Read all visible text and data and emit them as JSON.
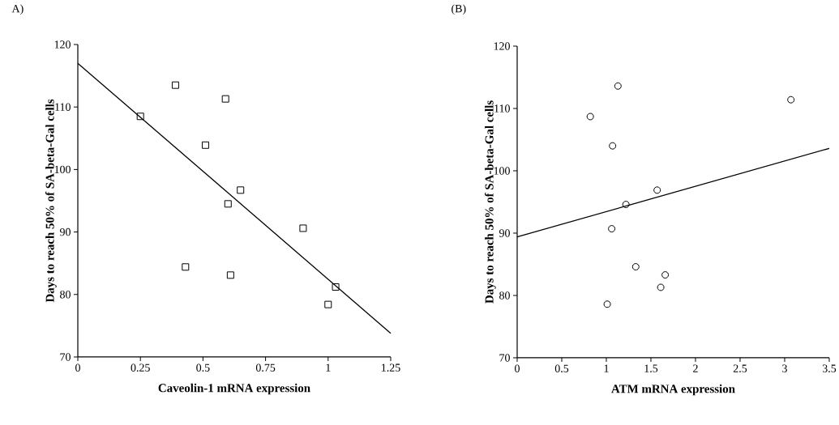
{
  "chart_data": [
    {
      "type": "scatter",
      "title": "A)",
      "xlabel": "Caveolin-1 mRNA expression",
      "ylabel": "Days to reach 50% of SA-beta-Gal cells",
      "xlim": [
        0,
        1.25
      ],
      "ylim": [
        70,
        120
      ],
      "xticks": [
        0,
        0.25,
        0.5,
        0.75,
        1,
        1.25
      ],
      "yticks": [
        70,
        80,
        90,
        100,
        110,
        120
      ],
      "series": [
        {
          "marker": "square",
          "color": "#000000",
          "x": [
            0.25,
            0.39,
            0.59,
            0.51,
            0.65,
            0.6,
            0.9,
            0.43,
            0.61,
            1.03,
            1.0
          ],
          "values": [
            108.5,
            113.5,
            111.3,
            103.9,
            96.7,
            94.5,
            90.6,
            84.4,
            83.1,
            81.2,
            78.4
          ]
        },
        {
          "type": "line",
          "marker": "none",
          "line_style": "solid",
          "color": "#000000",
          "x": [
            0,
            1.25
          ],
          "values": [
            117.0,
            73.8
          ]
        }
      ]
    },
    {
      "type": "scatter",
      "title": "(B)",
      "xlabel": "ATM mRNA expression",
      "ylabel": "Days to reach 50% of SA-beta-Gal cells",
      "xlim": [
        0,
        3.5
      ],
      "ylim": [
        70,
        120
      ],
      "xticks": [
        0,
        0.5,
        1,
        1.5,
        2,
        2.5,
        3,
        3.5
      ],
      "yticks": [
        70,
        80,
        90,
        100,
        110,
        120
      ],
      "series": [
        {
          "marker": "circle",
          "color": "#000000",
          "x": [
            0.82,
            1.13,
            3.07,
            1.07,
            1.57,
            1.22,
            1.06,
            1.33,
            1.66,
            1.61,
            1.01
          ],
          "values": [
            108.7,
            113.6,
            111.4,
            104.0,
            96.9,
            94.6,
            90.7,
            84.6,
            83.3,
            81.3,
            78.6
          ]
        },
        {
          "type": "line",
          "marker": "none",
          "line_style": "solid",
          "color": "#000000",
          "x": [
            0,
            3.5
          ],
          "values": [
            89.4,
            103.6
          ]
        }
      ]
    }
  ]
}
